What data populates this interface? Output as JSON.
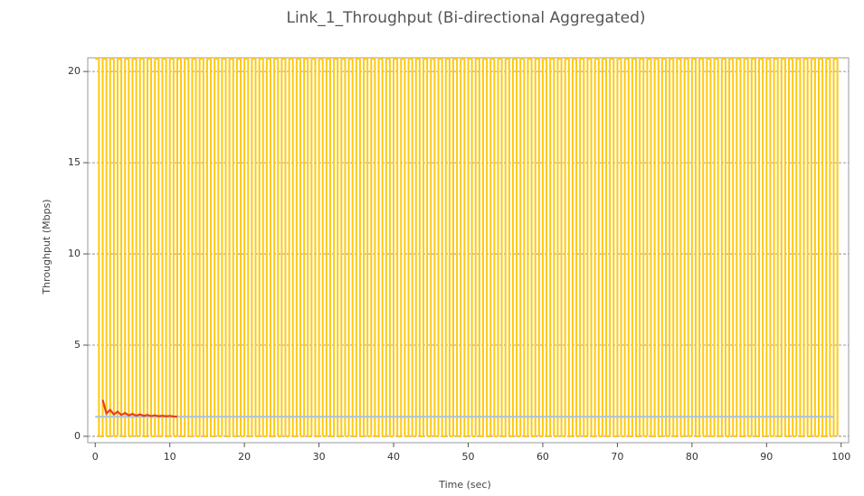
{
  "chart_data": {
    "type": "line",
    "title": "Link_1_Throughput (Bi-directional Aggregated)",
    "x_label": "Time (sec)",
    "y_label": "Throughput (Mbps)",
    "xlim": [
      -1,
      101
    ],
    "ylim": [
      -0.35,
      20.75
    ],
    "xticks": [
      0,
      10,
      20,
      30,
      40,
      50,
      60,
      70,
      80,
      90,
      100
    ],
    "yticks": [
      0,
      5,
      10,
      15,
      20
    ],
    "grid": true,
    "series": [
      {
        "color": "#ffc90e",
        "step": "post",
        "x": [
          0,
          0.5,
          1,
          1.5,
          2,
          2.5,
          3,
          3.5,
          4,
          4.5,
          5,
          5.5,
          6,
          6.5,
          7,
          7.5,
          8,
          8.5,
          9,
          9.5,
          10,
          10.5,
          11,
          11.5,
          12,
          12.5,
          13,
          13.5,
          14,
          14.5,
          15,
          15.5,
          16,
          16.5,
          17,
          17.5,
          18,
          18.5,
          19,
          19.5,
          20,
          20.5,
          21,
          21.5,
          22,
          22.5,
          23,
          23.5,
          24,
          24.5,
          25,
          25.5,
          26,
          26.5,
          27,
          27.5,
          28,
          28.5,
          29,
          29.5,
          30,
          30.5,
          31,
          31.5,
          32,
          32.5,
          33,
          33.5,
          34,
          34.5,
          35,
          35.5,
          36,
          36.5,
          37,
          37.5,
          38,
          38.5,
          39,
          39.5,
          40,
          40.5,
          41,
          41.5,
          42,
          42.5,
          43,
          43.5,
          44,
          44.5,
          45,
          45.5,
          46,
          46.5,
          47,
          47.5,
          48,
          48.5,
          49,
          49.5,
          50,
          50.5,
          51,
          51.5,
          52,
          52.5,
          53,
          53.5,
          54,
          54.5,
          55,
          55.5,
          56,
          56.5,
          57,
          57.5,
          58,
          58.5,
          59,
          59.5,
          60,
          60.5,
          61,
          61.5,
          62,
          62.5,
          63,
          63.5,
          64,
          64.5,
          65,
          65.5,
          66,
          66.5,
          67,
          67.5,
          68,
          68.5,
          69,
          69.5,
          70,
          70.5,
          71,
          71.5,
          72,
          72.5,
          73,
          73.5,
          74,
          74.5,
          75,
          75.5,
          76,
          76.5,
          77,
          77.5,
          78,
          78.5,
          79,
          79.5,
          80,
          80.5,
          81,
          81.5,
          82,
          82.5,
          83,
          83.5,
          84,
          84.5,
          85,
          85.5,
          86,
          86.5,
          87,
          87.5,
          88,
          88.5,
          89,
          89.5,
          90,
          90.5,
          91,
          91.5,
          92,
          92.5,
          93,
          93.5,
          94,
          94.5,
          95,
          95.5,
          96,
          96.5,
          97,
          97.5,
          98,
          98.5,
          99,
          99.5
        ],
        "values": [
          20.7,
          0,
          20.7,
          0,
          20.7,
          0,
          20.7,
          0,
          20.7,
          0,
          20.7,
          0,
          20.7,
          0,
          20.7,
          0,
          20.7,
          0,
          20.7,
          0,
          20.7,
          0,
          20.7,
          0,
          20.7,
          0,
          20.7,
          0,
          20.7,
          0,
          20.7,
          0,
          20.7,
          0,
          20.7,
          0,
          20.7,
          0,
          20.7,
          0,
          20.7,
          0,
          20.7,
          0,
          20.7,
          0,
          20.7,
          0,
          20.7,
          0,
          20.7,
          0,
          20.7,
          0,
          20.7,
          0,
          20.7,
          0,
          20.7,
          0,
          20.7,
          0,
          20.7,
          0,
          20.7,
          0,
          20.7,
          0,
          20.7,
          0,
          20.7,
          0,
          20.7,
          0,
          20.7,
          0,
          20.7,
          0,
          20.7,
          0,
          20.7,
          0,
          20.7,
          0,
          20.7,
          0,
          20.7,
          0,
          20.7,
          0,
          20.7,
          0,
          20.7,
          0,
          20.7,
          0,
          20.7,
          0,
          20.7,
          0,
          20.7,
          0,
          20.7,
          0,
          20.7,
          0,
          20.7,
          0,
          20.7,
          0,
          20.7,
          0,
          20.7,
          0,
          20.7,
          0,
          20.7,
          0,
          20.7,
          0,
          20.7,
          0,
          20.7,
          0,
          20.7,
          0,
          20.7,
          0,
          20.7,
          0,
          20.7,
          0,
          20.7,
          0,
          20.7,
          0,
          20.7,
          0,
          20.7,
          0,
          20.7,
          0,
          20.7,
          0,
          20.7,
          0,
          20.7,
          0,
          20.7,
          0,
          20.7,
          0,
          20.7,
          0,
          20.7,
          0,
          20.7,
          0,
          20.7,
          0,
          20.7,
          0,
          20.7,
          0,
          20.7,
          0,
          20.7,
          0,
          20.7,
          0,
          20.7,
          0,
          20.7,
          0,
          20.7,
          0,
          20.7,
          0,
          20.7,
          0,
          20.7,
          0,
          20.7,
          0,
          20.7,
          0,
          20.7,
          0,
          20.7,
          0,
          20.7,
          0,
          20.7,
          0,
          20.7,
          0,
          20.7,
          0,
          20.7,
          0
        ]
      },
      {
        "color": "#a9c4e0",
        "x": [
          0,
          99
        ],
        "values": [
          1.07,
          1.07
        ]
      },
      {
        "color": "#e8401c",
        "x": [
          1,
          1.5,
          2,
          2.5,
          3,
          3.5,
          4,
          4.5,
          5,
          5.5,
          6,
          6.5,
          7,
          7.5,
          8,
          8.5,
          9,
          9.5,
          10,
          10.5,
          11
        ],
        "values": [
          2.0,
          1.25,
          1.45,
          1.2,
          1.35,
          1.17,
          1.28,
          1.15,
          1.23,
          1.13,
          1.2,
          1.12,
          1.17,
          1.11,
          1.15,
          1.1,
          1.13,
          1.1,
          1.12,
          1.09,
          1.08
        ]
      }
    ]
  }
}
